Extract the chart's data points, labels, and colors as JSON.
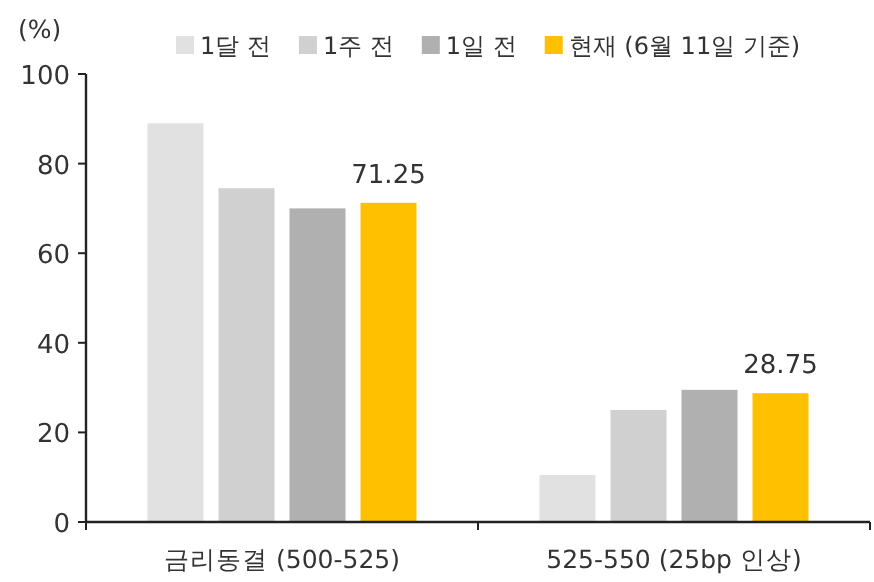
{
  "chart_data": {
    "type": "bar",
    "ylabel": "(%)",
    "categories": [
      "금리동결 (500-525)",
      "525-550 (25bp 인상)"
    ],
    "series": [
      {
        "name": "1달 전",
        "color": "#e1e1e1",
        "values": [
          89,
          10.5
        ]
      },
      {
        "name": "1주 전",
        "color": "#d0d0d0",
        "values": [
          74.5,
          25
        ]
      },
      {
        "name": "1일 전",
        "color": "#b0b0b0",
        "values": [
          70,
          29.5
        ]
      },
      {
        "name": "현재 (6월 11일 기준)",
        "color": "#ffc000",
        "values": [
          71.25,
          28.75
        ],
        "value_labels": [
          "71.25",
          "28.75"
        ]
      }
    ],
    "ylim": [
      0,
      100
    ],
    "yticks": [
      0,
      20,
      40,
      60,
      80,
      100
    ],
    "grid": false,
    "legend": "top"
  }
}
